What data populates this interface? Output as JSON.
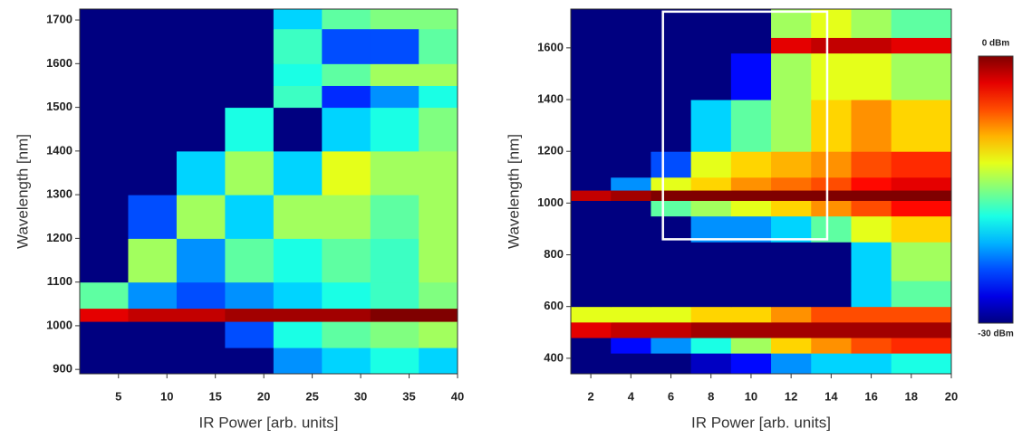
{
  "chart_data": [
    {
      "type": "heatmap",
      "xlabel": "IR Power [arb. units]",
      "ylabel": "Wavelength [nm]",
      "xlim": [
        1,
        40
      ],
      "ylim": [
        890,
        1725
      ],
      "xticks": [
        5,
        10,
        15,
        20,
        25,
        30,
        35,
        40
      ],
      "yticks": [
        900,
        1000,
        1100,
        1200,
        1300,
        1400,
        1500,
        1600,
        1700
      ],
      "clim": [
        -30,
        0
      ],
      "x_edges": [
        1,
        6,
        11,
        16,
        21,
        26,
        31,
        36,
        40
      ],
      "y_edges": [
        890,
        950,
        1010,
        1040,
        1100,
        1200,
        1300,
        1400,
        1500,
        1550,
        1600,
        1680,
        1725
      ],
      "z": [
        [
          -30,
          -30,
          -30,
          -30,
          -22,
          -20,
          -18,
          -20
        ],
        [
          -30,
          -30,
          -30,
          -24,
          -18,
          -16,
          -15,
          -14
        ],
        [
          -3,
          -2,
          -2,
          -1,
          -1,
          -1,
          0,
          0
        ],
        [
          -16,
          -22,
          -24,
          -22,
          -20,
          -18,
          -17,
          -15
        ],
        [
          -30,
          -14,
          -22,
          -16,
          -18,
          -16,
          -17,
          -14
        ],
        [
          -30,
          -24,
          -14,
          -20,
          -14,
          -14,
          -16,
          -14
        ],
        [
          -30,
          -30,
          -20,
          -14,
          -20,
          -12,
          -14,
          -14
        ],
        [
          -30,
          -30,
          -30,
          -18,
          -30,
          -20,
          -18,
          -15
        ],
        [
          -30,
          -30,
          -30,
          -30,
          -17,
          -25,
          -22,
          -18
        ],
        [
          -30,
          -30,
          -30,
          -30,
          -18,
          -16,
          -14,
          -14
        ],
        [
          -30,
          -30,
          -30,
          -30,
          -17,
          -24,
          -24,
          -16
        ],
        [
          -30,
          -30,
          -30,
          -30,
          -20,
          -16,
          -15,
          -15
        ]
      ]
    },
    {
      "type": "heatmap",
      "xlabel": "IR Power [arb. units]",
      "ylabel": "Wavelength [nm]",
      "xlim": [
        1,
        20
      ],
      "ylim": [
        340,
        1750
      ],
      "xticks": [
        2,
        4,
        6,
        8,
        10,
        12,
        14,
        16,
        18,
        20
      ],
      "yticks": [
        400,
        600,
        800,
        1000,
        1200,
        1400,
        1600
      ],
      "clim": [
        -30,
        0
      ],
      "x_edges": [
        1,
        3,
        5,
        7,
        9,
        11,
        13,
        15,
        17,
        20
      ],
      "y_edges": [
        340,
        420,
        480,
        540,
        600,
        700,
        850,
        950,
        1010,
        1050,
        1100,
        1200,
        1400,
        1580,
        1640,
        1750
      ],
      "z": [
        [
          -30,
          -30,
          -30,
          -28,
          -26,
          -22,
          -20,
          -20,
          -18
        ],
        [
          -30,
          -26,
          -22,
          -18,
          -14,
          -10,
          -8,
          -6,
          -5
        ],
        [
          -3,
          -2,
          -2,
          -1,
          -1,
          -1,
          -1,
          -1,
          -1
        ],
        [
          -12,
          -12,
          -12,
          -10,
          -10,
          -8,
          -6,
          -6,
          -6
        ],
        [
          -30,
          -30,
          -30,
          -30,
          -30,
          -30,
          -30,
          -20,
          -16
        ],
        [
          -30,
          -30,
          -30,
          -30,
          -30,
          -30,
          -30,
          -20,
          -14
        ],
        [
          -30,
          -30,
          -30,
          -22,
          -22,
          -20,
          -16,
          -12,
          -10
        ],
        [
          -30,
          -30,
          -16,
          -14,
          -12,
          -10,
          -8,
          -6,
          -4
        ],
        [
          -2,
          -1,
          0,
          0,
          0,
          0,
          0,
          0,
          0
        ],
        [
          -30,
          -22,
          -12,
          -10,
          -8,
          -7,
          -6,
          -4,
          -3
        ],
        [
          -30,
          -30,
          -24,
          -12,
          -10,
          -9,
          -8,
          -6,
          -5
        ],
        [
          -30,
          -30,
          -30,
          -20,
          -16,
          -14,
          -10,
          -8,
          -10
        ],
        [
          -30,
          -30,
          -30,
          -30,
          -26,
          -14,
          -12,
          -12,
          -14
        ],
        [
          -30,
          -30,
          -30,
          -30,
          -30,
          -3,
          -2,
          -2,
          -3
        ],
        [
          -30,
          -30,
          -30,
          -30,
          -30,
          -14,
          -12,
          -14,
          -16
        ]
      ],
      "highlight_box": {
        "x": [
          5.6,
          13.8
        ],
        "y": [
          860,
          1740
        ]
      },
      "colorbar": {
        "ticks": [
          {
            "value": 0,
            "label": "0 dBm"
          },
          {
            "value": -30,
            "label": "-30 dBm"
          }
        ]
      }
    }
  ]
}
